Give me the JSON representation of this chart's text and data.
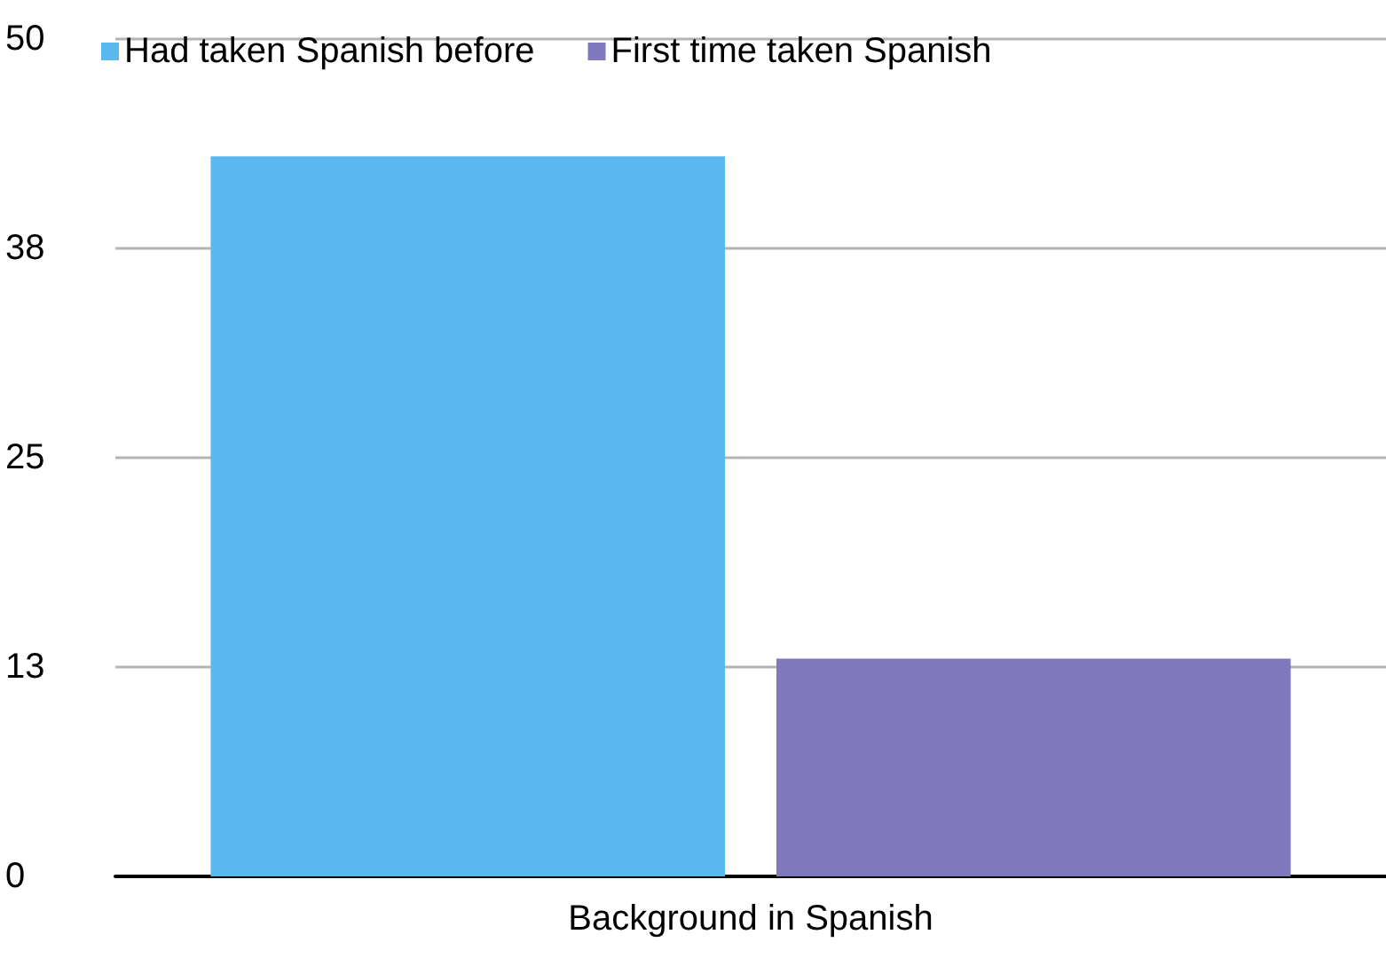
{
  "chart_data": {
    "type": "bar",
    "categories": [
      "Background in Spanish"
    ],
    "series": [
      {
        "name": "Had taken Spanish before",
        "color": "#5bb8ee",
        "values": [
          43
        ]
      },
      {
        "name": "First time taken Spanish",
        "color": "#7f78be",
        "values": [
          13
        ]
      }
    ],
    "ylim": [
      0,
      50
    ],
    "yticks": [
      0,
      {
        "value": 12.5,
        "label": "13"
      },
      25,
      {
        "value": 37.5,
        "label": "38"
      },
      50
    ],
    "grid": "y",
    "legend": "top left"
  }
}
